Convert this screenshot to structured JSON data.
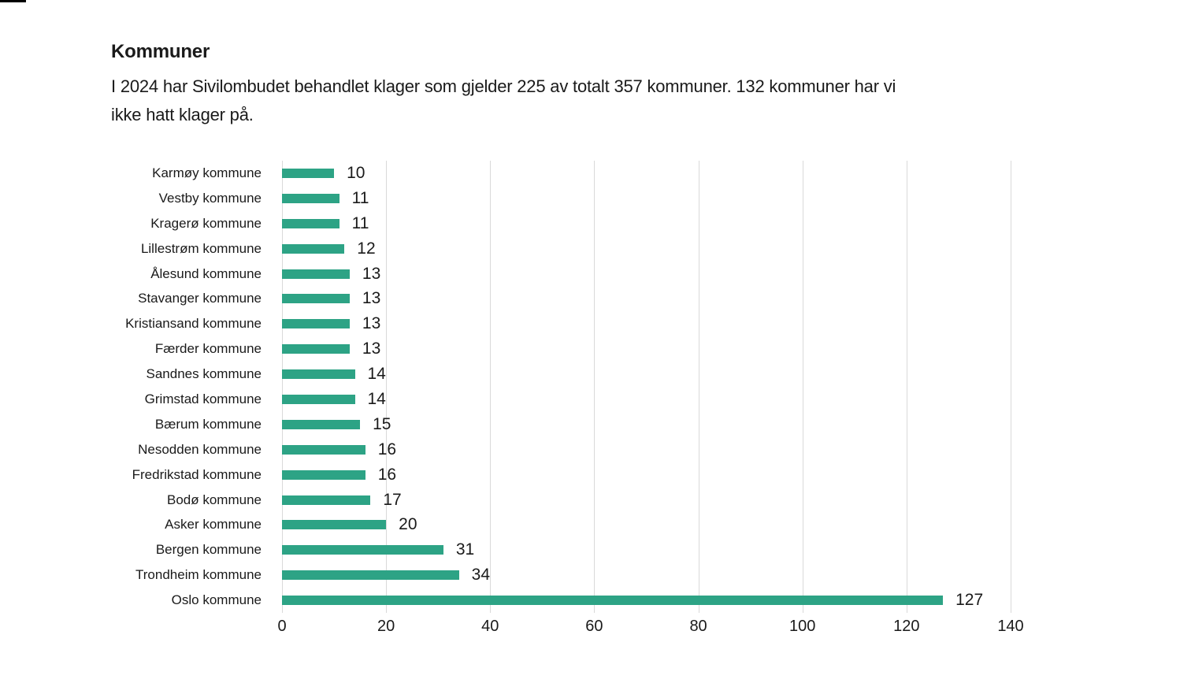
{
  "page": {
    "title": "Kommuner",
    "subtitle_lines": [
      "I 2024 har Sivilombudet behandlet klager som gjelder 225 av totalt 357 kommuner. 132 kommuner har vi",
      "ikke hatt klager på."
    ]
  },
  "chart_data": {
    "type": "bar",
    "orientation": "horizontal",
    "title": "Kommuner",
    "subtitle": "I 2024 har Sivilombudet behandlet klager som gjelder 225 av totalt 357 kommuner. 132 kommuner har vi ikke hatt klager på.",
    "categories": [
      "Karmøy kommune",
      "Vestby kommune",
      "Kragerø kommune",
      "Lillestrøm kommune",
      "Ålesund kommune",
      "Stavanger kommune",
      "Kristiansand kommune",
      "Færder kommune",
      "Sandnes kommune",
      "Grimstad kommune",
      "Bærum kommune",
      "Nesodden kommune",
      "Fredrikstad kommune",
      "Bodø kommune",
      "Asker kommune",
      "Bergen kommune",
      "Trondheim kommune",
      "Oslo kommune"
    ],
    "values": [
      10,
      11,
      11,
      12,
      13,
      13,
      13,
      13,
      14,
      14,
      15,
      16,
      16,
      17,
      20,
      31,
      34,
      127
    ],
    "xlabel": "",
    "ylabel": "",
    "xlim": [
      0,
      140
    ],
    "xticks": [
      0,
      20,
      40,
      60,
      80,
      100,
      120,
      140
    ],
    "grid": true,
    "legend": false,
    "value_labels": true,
    "colors": {
      "bar": "#2da385",
      "grid": "#d9d9d9",
      "text": "#1a1a1a"
    }
  }
}
